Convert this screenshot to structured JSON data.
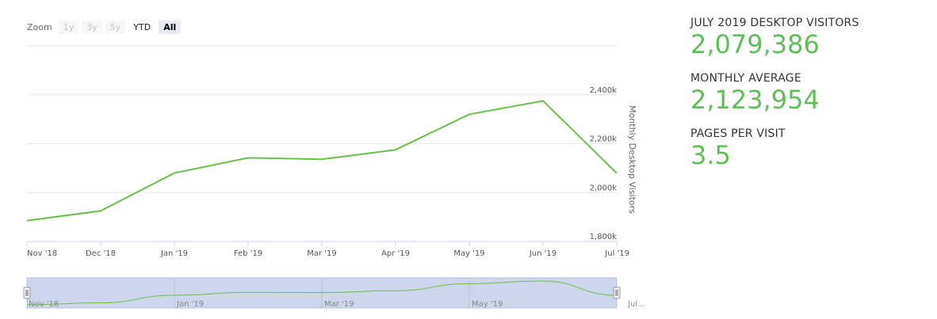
{
  "zoom": {
    "label": "Zoom",
    "buttons": [
      {
        "label": "1y",
        "state": "disabled"
      },
      {
        "label": "3y",
        "state": "disabled"
      },
      {
        "label": "5y",
        "state": "disabled"
      },
      {
        "label": "YTD",
        "state": "enabled"
      },
      {
        "label": "All",
        "state": "selected"
      }
    ]
  },
  "chart_data": {
    "type": "line",
    "x": [
      "Nov '18",
      "Dec '18",
      "Jan '19",
      "Feb '19",
      "Mar '19",
      "Apr '19",
      "May '19",
      "Jun '19",
      "Jul '19"
    ],
    "series": [
      {
        "values": [
          1885000,
          1925000,
          2080000,
          2142000,
          2136000,
          2175000,
          2320000,
          2375000,
          2079386
        ]
      }
    ],
    "ylabel": "Monthly Desktop Visitors",
    "yticks": [
      "1,800k",
      "2,000k",
      "2,200k",
      "2,400k"
    ],
    "ytick_values": [
      1800000,
      2000000,
      2200000,
      2400000
    ],
    "ylim": [
      1800000,
      2600000
    ],
    "grid": true,
    "line_color": "#6abf4b",
    "navigator": {
      "labels": [
        "Nov '18",
        "Jan '19",
        "Mar '19",
        "May '19",
        "Jul..."
      ]
    }
  },
  "stats": [
    {
      "label": "JULY 2019 DESKTOP VISITORS",
      "value": "2,079,386"
    },
    {
      "label": "MONTHLY AVERAGE",
      "value": "2,123,954"
    },
    {
      "label": "PAGES PER VISIT",
      "value": "3.5"
    }
  ]
}
